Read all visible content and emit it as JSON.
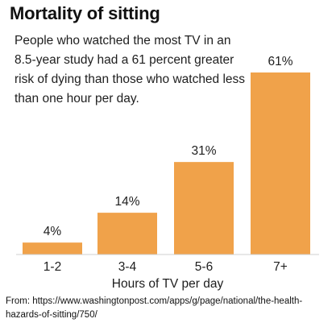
{
  "chart_data": {
    "type": "bar",
    "title": "Mortality of sitting",
    "subtitle": "People who watched the most TV in an 8.5-year study had a 61 percent greater risk of dying than those who watched less than one hour per day.",
    "categories": [
      "1-2",
      "3-4",
      "5-6",
      "7+"
    ],
    "values": [
      4,
      14,
      31,
      61
    ],
    "data_labels": [
      "4%",
      "14%",
      "31%",
      "61%"
    ],
    "xlabel": "Hours of TV per day",
    "ylabel": "",
    "ylim": [
      0,
      61
    ],
    "grid": false,
    "legend": "none",
    "bar_color": "#F0A24A"
  },
  "source": "From: https://www.washingtonpost.com/apps/g/page/national/the-health-hazards-of-sitting/750/"
}
